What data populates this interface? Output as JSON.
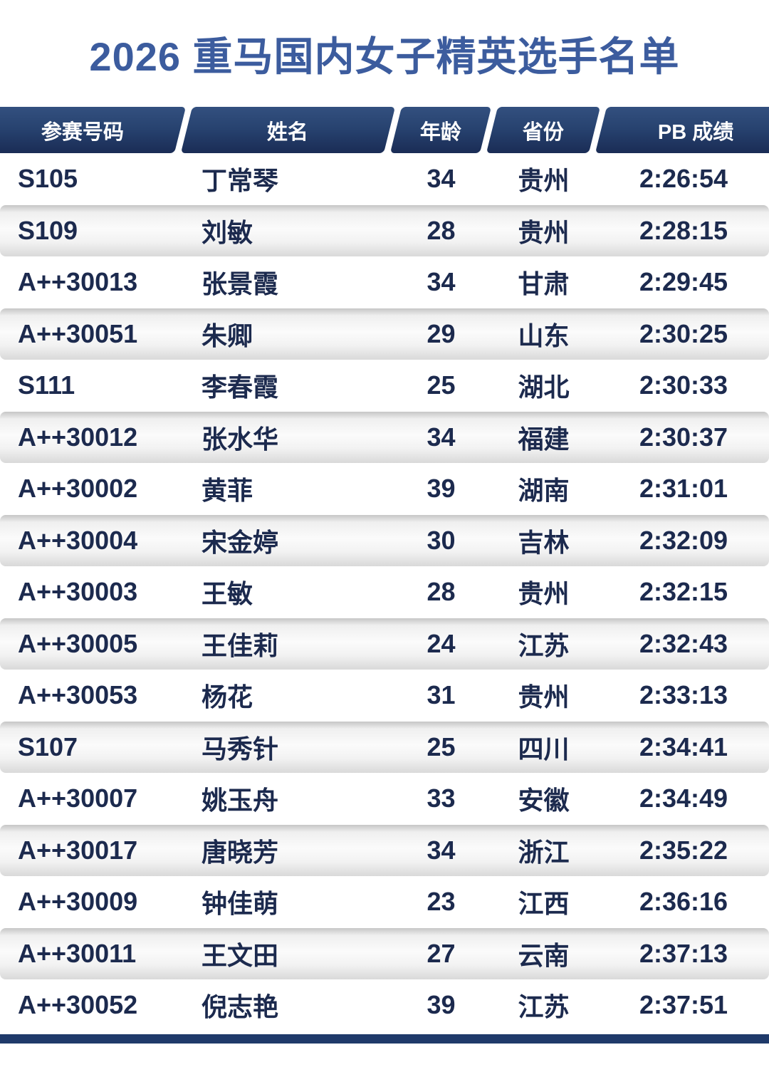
{
  "chart_data": {
    "type": "table",
    "title": "2026 重马国内女子精英选手名单",
    "columns": [
      "参赛号码",
      "姓名",
      "年龄",
      "省份",
      "PB 成绩"
    ],
    "rows": [
      {
        "bib": "S105",
        "name": "丁常琴",
        "age": "34",
        "province": "贵州",
        "pb": "2:26:54"
      },
      {
        "bib": "S109",
        "name": "刘敏",
        "age": "28",
        "province": "贵州",
        "pb": "2:28:15"
      },
      {
        "bib": "A++30013",
        "name": "张景霞",
        "age": "34",
        "province": "甘肃",
        "pb": "2:29:45"
      },
      {
        "bib": "A++30051",
        "name": "朱卿",
        "age": "29",
        "province": "山东",
        "pb": "2:30:25"
      },
      {
        "bib": "S111",
        "name": "李春霞",
        "age": "25",
        "province": "湖北",
        "pb": "2:30:33"
      },
      {
        "bib": "A++30012",
        "name": "张水华",
        "age": "34",
        "province": "福建",
        "pb": "2:30:37"
      },
      {
        "bib": "A++30002",
        "name": "黄菲",
        "age": "39",
        "province": "湖南",
        "pb": "2:31:01"
      },
      {
        "bib": "A++30004",
        "name": "宋金婷",
        "age": "30",
        "province": "吉林",
        "pb": "2:32:09"
      },
      {
        "bib": "A++30003",
        "name": "王敏",
        "age": "28",
        "province": "贵州",
        "pb": "2:32:15"
      },
      {
        "bib": "A++30005",
        "name": "王佳莉",
        "age": "24",
        "province": "江苏",
        "pb": "2:32:43"
      },
      {
        "bib": "A++30053",
        "name": "杨花",
        "age": "31",
        "province": "贵州",
        "pb": "2:33:13"
      },
      {
        "bib": "S107",
        "name": "马秀针",
        "age": "25",
        "province": "四川",
        "pb": "2:34:41"
      },
      {
        "bib": "A++30007",
        "name": "姚玉舟",
        "age": "33",
        "province": "安徽",
        "pb": "2:34:49"
      },
      {
        "bib": "A++30017",
        "name": "唐晓芳",
        "age": "34",
        "province": "浙江",
        "pb": "2:35:22"
      },
      {
        "bib": "A++30009",
        "name": "钟佳萌",
        "age": "23",
        "province": "江西",
        "pb": "2:36:16"
      },
      {
        "bib": "A++30011",
        "name": "王文田",
        "age": "27",
        "province": "云南",
        "pb": "2:37:13"
      },
      {
        "bib": "A++30052",
        "name": "倪志艳",
        "age": "39",
        "province": "江苏",
        "pb": "2:37:51"
      }
    ],
    "layout_hints": {
      "row_striping": "alternating white / light-gray gradient bars, first row white",
      "header_style": "navy slanted parallelogram cells with white slash separators"
    }
  },
  "colors": {
    "title_color": "#3c5c9e",
    "header_top": "#33507f",
    "header_mid": "#27426f",
    "header_bottom": "#1a2c55",
    "text_color": "#1c2a4e",
    "bottom_bar": "#1f3a6a",
    "alt_top": "#c6c6c6",
    "alt_mid": "#fbfbfb",
    "alt_bottom": "#d9d9d9"
  }
}
